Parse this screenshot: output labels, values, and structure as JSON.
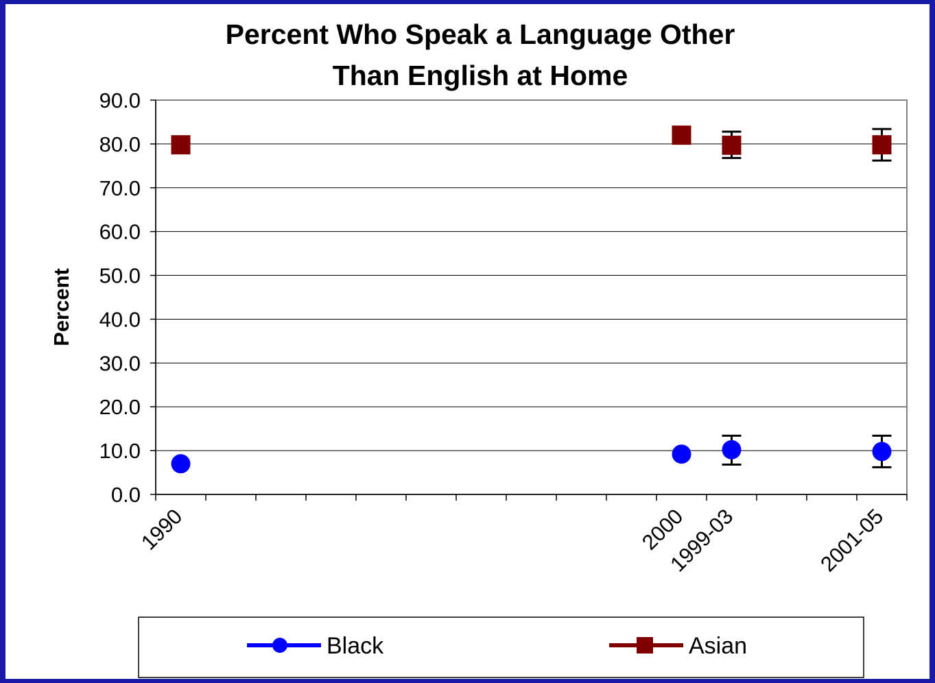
{
  "chart_data": {
    "type": "scatter",
    "title_lines": [
      "Percent Who Speak a Language Other",
      "Than English at Home"
    ],
    "xlabel": "",
    "ylabel": "Percent",
    "ylim": [
      0,
      90
    ],
    "yticks": [
      "0.0",
      "10.0",
      "20.0",
      "30.0",
      "40.0",
      "50.0",
      "60.0",
      "70.0",
      "80.0",
      "90.0"
    ],
    "categories": [
      "1990",
      "",
      "",
      "",
      "",
      "",
      "",
      "",
      "",
      "",
      "2000",
      "1999-03",
      "",
      "",
      "2001-05"
    ],
    "grid": true,
    "legend_position": "bottom",
    "series": [
      {
        "name": "Black",
        "color": "#0000ff",
        "marker": "circle",
        "points": [
          {
            "category": "1990",
            "y": 7.0
          },
          {
            "category": "2000",
            "y": 9.2
          },
          {
            "category": "1999-03",
            "y": 10.2,
            "err": [
              6.8,
              13.4
            ]
          },
          {
            "category": "2001-05",
            "y": 9.8,
            "err": [
              6.2,
              13.4
            ]
          }
        ]
      },
      {
        "name": "Asian",
        "color": "#800000",
        "marker": "square",
        "points": [
          {
            "category": "1990",
            "y": 79.8
          },
          {
            "category": "2000",
            "y": 82.0
          },
          {
            "category": "1999-03",
            "y": 79.7,
            "err": [
              76.8,
              82.8
            ]
          },
          {
            "category": "2001-05",
            "y": 79.8,
            "err": [
              76.2,
              83.4
            ]
          }
        ]
      }
    ]
  }
}
